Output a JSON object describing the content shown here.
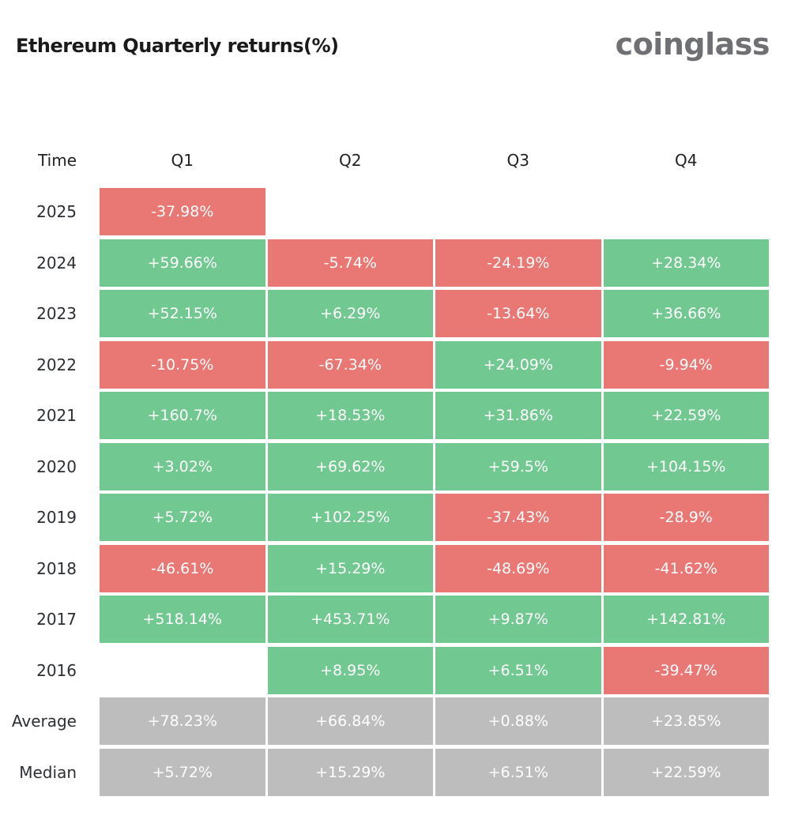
{
  "title": "Ethereum Quarterly returns(%)",
  "logo": "coinglass",
  "colors": {
    "positive": "#72c891",
    "negative": "#e97773",
    "summary": "#bdbdbd"
  },
  "chart_data": {
    "type": "table",
    "title": "Ethereum Quarterly returns(%)",
    "header": [
      "Time",
      "Q1",
      "Q2",
      "Q3",
      "Q4"
    ],
    "rows": [
      {
        "label": "2025",
        "values": [
          "-37.98%",
          null,
          null,
          null
        ]
      },
      {
        "label": "2024",
        "values": [
          "+59.66%",
          "-5.74%",
          "-24.19%",
          "+28.34%"
        ]
      },
      {
        "label": "2023",
        "values": [
          "+52.15%",
          "+6.29%",
          "-13.64%",
          "+36.66%"
        ]
      },
      {
        "label": "2022",
        "values": [
          "-10.75%",
          "-67.34%",
          "+24.09%",
          "-9.94%"
        ]
      },
      {
        "label": "2021",
        "values": [
          "+160.7%",
          "+18.53%",
          "+31.86%",
          "+22.59%"
        ]
      },
      {
        "label": "2020",
        "values": [
          "+3.02%",
          "+69.62%",
          "+59.5%",
          "+104.15%"
        ]
      },
      {
        "label": "2019",
        "values": [
          "+5.72%",
          "+102.25%",
          "-37.43%",
          "-28.9%"
        ]
      },
      {
        "label": "2018",
        "values": [
          "-46.61%",
          "+15.29%",
          "-48.69%",
          "-41.62%"
        ]
      },
      {
        "label": "2017",
        "values": [
          "+518.14%",
          "+453.71%",
          "+9.87%",
          "+142.81%"
        ]
      },
      {
        "label": "2016",
        "values": [
          null,
          "+8.95%",
          "+6.51%",
          "-39.47%"
        ]
      },
      {
        "label": "Average",
        "summary": true,
        "values": [
          "+78.23%",
          "+66.84%",
          "+0.88%",
          "+23.85%"
        ]
      },
      {
        "label": "Median",
        "summary": true,
        "values": [
          "+5.72%",
          "+15.29%",
          "+6.51%",
          "+22.59%"
        ]
      }
    ]
  }
}
